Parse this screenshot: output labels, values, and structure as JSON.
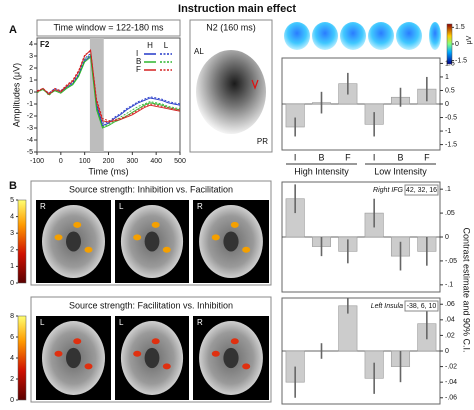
{
  "title": "Instruction main effect",
  "panel_labels": [
    "A",
    "B"
  ],
  "y_label_right": "Contrast estimate and 90% C.I.",
  "topomap": {
    "title": "N2 (160 ms)",
    "labels": [
      "AL",
      "PR"
    ],
    "colorbar": {
      "lim": [
        -1.8,
        1.8
      ],
      "ticks": [
        1.5,
        0,
        -1.5
      ],
      "unit": "μV"
    }
  },
  "brain_rows": [
    {
      "title": "Source strength: Inhibition vs. Facilitation",
      "side_labels": [
        "R",
        "L",
        "R"
      ],
      "region": "Right IFG",
      "coords": "42, 32, 16",
      "colorbar": {
        "lim": [
          0,
          5
        ],
        "ticks": [
          5,
          4,
          3,
          2,
          1,
          0
        ]
      }
    },
    {
      "title": "Source strength: Facilitation vs. Inhibition",
      "side_labels": [
        "L",
        "L",
        "R"
      ],
      "region": "Left Insula",
      "coords": "-38, 6, 10",
      "colorbar": {
        "lim": [
          0,
          8
        ],
        "ticks": [
          8,
          6,
          4,
          2,
          0
        ]
      }
    }
  ],
  "chart_data": [
    {
      "type": "line",
      "title": "Time window = 122-180 ms",
      "sensor": "F2",
      "x_label": "Time (ms)",
      "y_label": "Amplitudes (μV)",
      "x": [
        -100,
        -75,
        -50,
        -25,
        0,
        25,
        50,
        75,
        100,
        125,
        150,
        175,
        200,
        225,
        250,
        275,
        300,
        325,
        350,
        375,
        400,
        425,
        450,
        475,
        500
      ],
      "xlim": [
        -100,
        500
      ],
      "xticks": [
        -100,
        0,
        100,
        200,
        300,
        400,
        500
      ],
      "ylim": [
        -5,
        4.5
      ],
      "yticks": [
        4,
        3,
        2,
        1,
        0,
        -1,
        -2,
        -3,
        -4,
        -5
      ],
      "highlight": [
        122,
        180
      ],
      "highlight_color": "#bdbdbd",
      "legend": {
        "columns": [
          "H",
          "L"
        ],
        "rows": [
          "I",
          "B",
          "F"
        ]
      },
      "series": [
        {
          "color": "#2338c8",
          "dash": false,
          "values": [
            0,
            0.3,
            -0.2,
            0.2,
            0,
            0.4,
            0.7,
            1.4,
            2.6,
            3.0,
            -1.2,
            -2.8,
            -2.6,
            -2.2,
            -1.9,
            -1.5,
            -1.2,
            -0.9,
            -0.7,
            -0.5,
            -0.6,
            -0.7,
            -0.9,
            -1.0,
            -1.1
          ]
        },
        {
          "color": "#2338c8",
          "dash": true,
          "values": [
            0.1,
            0.2,
            -0.1,
            0.3,
            0.1,
            0.5,
            0.8,
            1.5,
            2.8,
            3.2,
            -1.0,
            -2.6,
            -2.5,
            -2.1,
            -1.8,
            -1.4,
            -1.1,
            -0.8,
            -0.6,
            -0.4,
            -0.5,
            -0.6,
            -0.8,
            -0.9,
            -1.0
          ]
        },
        {
          "color": "#2db52d",
          "dash": false,
          "values": [
            0,
            0.2,
            -0.2,
            0.1,
            -0.1,
            0.3,
            0.6,
            1.3,
            2.5,
            2.9,
            -1.5,
            -3.0,
            -2.8,
            -2.5,
            -2.3,
            -2.0,
            -1.7,
            -1.4,
            -1.1,
            -0.9,
            -1.0,
            -1.1,
            -1.3,
            -1.4,
            -1.5
          ]
        },
        {
          "color": "#2db52d",
          "dash": true,
          "values": [
            -0.1,
            0.3,
            -0.3,
            0.2,
            0,
            0.4,
            0.7,
            1.4,
            2.7,
            3.1,
            -1.3,
            -2.9,
            -2.7,
            -2.4,
            -2.1,
            -1.8,
            -1.5,
            -1.2,
            -1.0,
            -0.8,
            -0.9,
            -1.0,
            -1.2,
            -1.3,
            -1.4
          ]
        },
        {
          "color": "#d42020",
          "dash": false,
          "values": [
            0,
            0.3,
            -0.2,
            0.2,
            0,
            0.5,
            0.9,
            1.7,
            3.0,
            3.5,
            -0.8,
            -2.4,
            -2.5,
            -2.4,
            -2.3,
            -2.1,
            -1.9,
            -1.6,
            -1.3,
            -1.1,
            -1.2,
            -1.3,
            -1.4,
            -1.5,
            -1.6
          ]
        },
        {
          "color": "#d42020",
          "dash": true,
          "values": [
            0.1,
            0.3,
            -0.1,
            0.3,
            0.1,
            0.6,
            1.0,
            1.8,
            3.1,
            3.4,
            -0.6,
            -2.2,
            -2.4,
            -2.3,
            -2.2,
            -2.0,
            -1.8,
            -1.5,
            -1.2,
            -1.0,
            -1.1,
            -1.2,
            -1.3,
            -1.4,
            -1.5
          ]
        }
      ]
    },
    {
      "type": "bar",
      "categories": [
        "I",
        "B",
        "F",
        "I",
        "B",
        "F"
      ],
      "groups": [
        "High Intensity",
        "Low Intensity"
      ],
      "values": [
        -0.85,
        0.05,
        0.75,
        -0.75,
        0.25,
        0.55
      ],
      "errors": [
        0.35,
        0.4,
        0.4,
        0.45,
        0.35,
        0.45
      ],
      "color": "#cccccc",
      "ylim": [
        -1.7,
        1.7
      ],
      "yticks": [
        1.5,
        1,
        0.5,
        0,
        -0.5,
        -1,
        -1.5
      ]
    },
    {
      "type": "bar",
      "values": [
        0.08,
        -0.02,
        -0.03,
        0.05,
        -0.04,
        -0.03
      ],
      "errors": [
        0.03,
        0.02,
        0.025,
        0.03,
        0.03,
        0.03
      ],
      "color": "#cccccc",
      "ylim": [
        -0.115,
        0.115
      ],
      "yticks": [
        {
          "value": 0.1,
          "label": ".1"
        },
        {
          "value": 0.05,
          "label": ".05"
        },
        0,
        {
          "value": -0.05,
          "label": "-.05"
        },
        {
          "value": -0.1,
          "label": "-.1"
        }
      ]
    },
    {
      "type": "bar",
      "values": [
        -0.04,
        0,
        0.058,
        -0.035,
        -0.02,
        0.035
      ],
      "errors": [
        0.02,
        0.01,
        0.01,
        0.02,
        0.02,
        0.02
      ],
      "color": "#cccccc",
      "ylim": [
        -0.068,
        0.068
      ],
      "yticks": [
        {
          "value": 0.06,
          "label": ".06"
        },
        {
          "value": 0.04,
          "label": ".04"
        },
        {
          "value": 0.02,
          "label": ".02"
        },
        0,
        {
          "value": -0.02,
          "label": "-.02"
        },
        {
          "value": -0.04,
          "label": "-.04"
        },
        {
          "value": -0.06,
          "label": "-.06"
        }
      ]
    }
  ]
}
